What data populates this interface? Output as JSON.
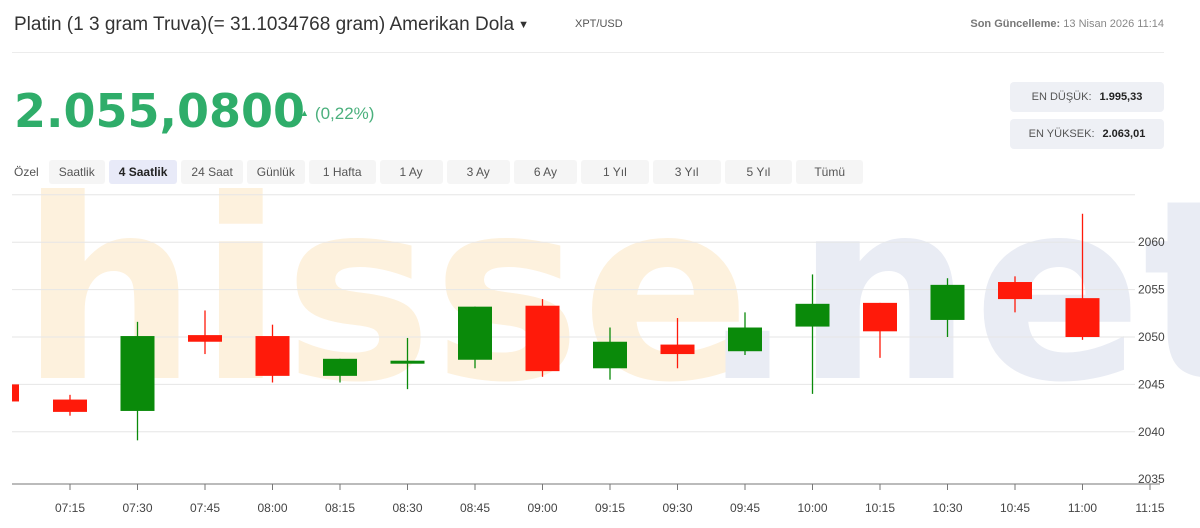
{
  "header": {
    "title": "Platin (1 3 gram Truva)(= 31.1034768 gram) Amerikan Dola",
    "dropdown_icon": "caret-down-icon",
    "symbol": "XPT/USD",
    "updated_label": "Son Güncelleme:",
    "updated_value": "13 Nisan 2026 11:14"
  },
  "quote": {
    "price": "2.055,0800",
    "change_icon": "triangle-up-icon",
    "change": "(0,22%)",
    "price_color": "#2fad6a"
  },
  "stats": {
    "low_label": "EN DÜŞÜK:",
    "low_value": "1.995,33",
    "high_label": "EN YÜKSEK:",
    "high_value": "2.063,01"
  },
  "tabs": [
    {
      "label": "Özel",
      "active": false
    },
    {
      "label": "Saatlik",
      "active": false
    },
    {
      "label": "4 Saatlik",
      "active": true
    },
    {
      "label": "24 Saat",
      "active": false
    },
    {
      "label": "Günlük",
      "active": false
    },
    {
      "label": "1 Hafta",
      "active": false
    },
    {
      "label": "1 Ay",
      "active": false
    },
    {
      "label": "3 Ay",
      "active": false
    },
    {
      "label": "6 Ay",
      "active": false
    },
    {
      "label": "1 Yıl",
      "active": false
    },
    {
      "label": "3 Yıl",
      "active": false
    },
    {
      "label": "5 Yıl",
      "active": false
    },
    {
      "label": "Tümü",
      "active": false
    }
  ],
  "watermark": {
    "text_left": "hisse",
    "text_right": ".net"
  },
  "colors": {
    "up": "#0a8a0a",
    "down": "#ff1a0a",
    "grid": "#e6e6e6",
    "axis": "#777777"
  },
  "chart_data": {
    "type": "candlestick",
    "title": "",
    "xlabel": "",
    "ylabel": "",
    "ylim": [
      2033,
      2065
    ],
    "y_ticks": [
      2035,
      2040,
      2045,
      2050,
      2055,
      2060
    ],
    "x_ticks": [
      "07:15",
      "07:30",
      "07:45",
      "08:00",
      "08:15",
      "08:30",
      "08:45",
      "09:00",
      "09:15",
      "09:30",
      "09:45",
      "10:00",
      "10:15",
      "10:30",
      "10:45",
      "11:00",
      "11:15"
    ],
    "grid": true,
    "y_axis_position": "right",
    "candles": [
      {
        "time": "07:00",
        "open": 2045.0,
        "high": 2045.0,
        "low": 2043.2,
        "close": 2043.2
      },
      {
        "time": "07:15",
        "open": 2043.4,
        "high": 2043.9,
        "low": 2041.7,
        "close": 2042.1
      },
      {
        "time": "07:30",
        "open": 2042.2,
        "high": 2051.6,
        "low": 2039.1,
        "close": 2050.1
      },
      {
        "time": "07:45",
        "open": 2050.2,
        "high": 2052.8,
        "low": 2048.2,
        "close": 2049.5
      },
      {
        "time": "08:00",
        "open": 2050.1,
        "high": 2051.3,
        "low": 2045.2,
        "close": 2045.9
      },
      {
        "time": "08:15",
        "open": 2045.9,
        "high": 2047.7,
        "low": 2045.2,
        "close": 2047.7
      },
      {
        "time": "08:30",
        "open": 2047.2,
        "high": 2049.9,
        "low": 2044.5,
        "close": 2047.5
      },
      {
        "time": "08:45",
        "open": 2047.6,
        "high": 2053.2,
        "low": 2046.7,
        "close": 2053.2
      },
      {
        "time": "09:00",
        "open": 2053.3,
        "high": 2054.0,
        "low": 2045.8,
        "close": 2046.4
      },
      {
        "time": "09:15",
        "open": 2046.7,
        "high": 2051.0,
        "low": 2045.5,
        "close": 2049.5
      },
      {
        "time": "09:30",
        "open": 2049.2,
        "high": 2052.0,
        "low": 2046.7,
        "close": 2048.2
      },
      {
        "time": "09:45",
        "open": 2048.5,
        "high": 2052.6,
        "low": 2048.1,
        "close": 2051.0
      },
      {
        "time": "10:00",
        "open": 2051.1,
        "high": 2056.6,
        "low": 2044.0,
        "close": 2053.5
      },
      {
        "time": "10:15",
        "open": 2053.6,
        "high": 2053.6,
        "low": 2047.8,
        "close": 2050.6
      },
      {
        "time": "10:30",
        "open": 2051.8,
        "high": 2056.2,
        "low": 2050.0,
        "close": 2055.5
      },
      {
        "time": "10:45",
        "open": 2055.8,
        "high": 2056.4,
        "low": 2052.6,
        "close": 2054.0
      },
      {
        "time": "11:00",
        "open": 2054.1,
        "high": 2063.0,
        "low": 2049.7,
        "close": 2050.0
      }
    ]
  }
}
